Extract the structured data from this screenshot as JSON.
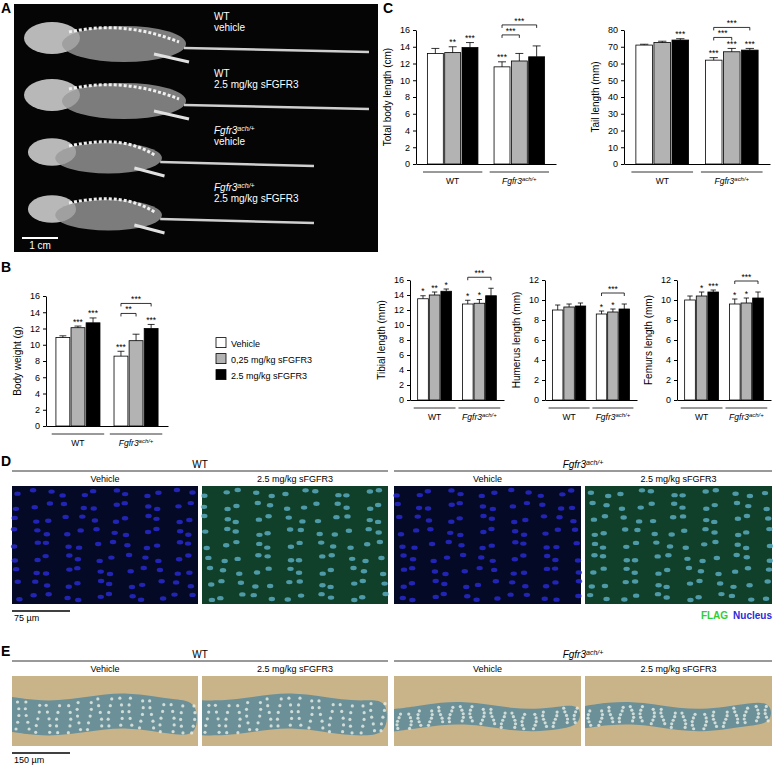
{
  "figure": {
    "panel_labels": [
      "A",
      "B",
      "C",
      "D",
      "E"
    ],
    "panel_a": {
      "specimens": [
        [
          "WT",
          "vehicle"
        ],
        [
          "WT",
          "2.5 mg/kg sFGFR3"
        ],
        [
          "Fgfr3ach/+",
          "vehicle"
        ],
        [
          "Fgfr3ach/+",
          "2.5 mg/kg sFGFR3"
        ]
      ],
      "scale_bar": "1 cm"
    },
    "panel_d": {
      "groups": [
        "WT",
        "Fgfr3ach/+"
      ],
      "conditions": [
        "Vehicle",
        "2.5 mg/kg sFGFR3"
      ],
      "scale_bar": "75 µm",
      "stains": [
        {
          "name": "FLAG",
          "color": "#33cc33"
        },
        {
          "name": "Nucleus",
          "color": "#2b2bd9"
        }
      ]
    },
    "panel_e": {
      "groups": [
        "WT",
        "Fgfr3ach/+"
      ],
      "conditions": [
        "Vehicle",
        "2.5 mg/kg sFGFR3"
      ],
      "scale_bar": "150 µm"
    }
  },
  "chart_data": [
    {
      "type": "bar",
      "y_label": "Body weight (g)",
      "categories": [
        "WT",
        "Fgfr3ach/+"
      ],
      "ylim": [
        0,
        16
      ],
      "yticks": [
        0,
        2,
        4,
        6,
        8,
        10,
        12,
        14,
        16
      ],
      "legend": "right",
      "series": [
        {
          "name": "Vehicle",
          "color": "#ffffff",
          "values": [
            10.9,
            8.6
          ],
          "errors": [
            0.2,
            0.6
          ],
          "significance": [
            null,
            "***"
          ]
        },
        {
          "name": "0,25 mg/kg sFGFR3",
          "color": "#b3b3b3",
          "values": [
            12.1,
            10.5
          ],
          "errors": [
            0.2,
            0.8
          ],
          "significance": [
            "***",
            null
          ]
        },
        {
          "name": "2.5 mg/kg sFGFR3",
          "color": "#000000",
          "values": [
            12.7,
            12.0
          ],
          "errors": [
            0.6,
            0.5
          ],
          "significance": [
            "***",
            "***"
          ]
        }
      ],
      "comparisons": [
        {
          "category": 1,
          "from": 0,
          "to": 1,
          "label": "**"
        },
        {
          "category": 1,
          "from": 0,
          "to": 2,
          "label": "***"
        }
      ]
    },
    {
      "type": "bar",
      "y_label": "Total body length (cm)",
      "categories": [
        "WT",
        "Fgfr3ach/+"
      ],
      "ylim": [
        0,
        16
      ],
      "yticks": [
        0,
        2,
        4,
        6,
        8,
        10,
        12,
        14,
        16
      ],
      "series": [
        {
          "color": "#ffffff",
          "values": [
            13.2,
            11.6
          ],
          "errors": [
            0.6,
            0.6
          ],
          "significance": [
            null,
            "***"
          ]
        },
        {
          "color": "#b3b3b3",
          "values": [
            13.3,
            12.3
          ],
          "errors": [
            0.7,
            0.9
          ],
          "significance": [
            "**",
            null
          ]
        },
        {
          "color": "#000000",
          "values": [
            13.9,
            12.8
          ],
          "errors": [
            0.6,
            1.3
          ],
          "significance": [
            "***",
            null
          ]
        }
      ],
      "comparisons": [
        {
          "category": 1,
          "from": 0,
          "to": 1,
          "label": "***"
        },
        {
          "category": 1,
          "from": 0,
          "to": 2,
          "label": "***"
        }
      ]
    },
    {
      "type": "bar",
      "y_label": "Tail length (mm)",
      "categories": [
        "WT",
        "Fgfr3ach/+"
      ],
      "ylim": [
        0,
        80
      ],
      "yticks": [
        0,
        10,
        20,
        30,
        40,
        50,
        60,
        70,
        80
      ],
      "series": [
        {
          "color": "#ffffff",
          "values": [
            71,
            62
          ],
          "errors": [
            0.5,
            1.5
          ],
          "significance": [
            null,
            "***"
          ]
        },
        {
          "color": "#b3b3b3",
          "values": [
            72.5,
            67
          ],
          "errors": [
            0.8,
            2
          ],
          "significance": [
            null,
            "***"
          ]
        },
        {
          "color": "#000000",
          "values": [
            74,
            68
          ],
          "errors": [
            0.8,
            1
          ],
          "significance": [
            "***",
            "***"
          ]
        }
      ],
      "comparisons": [
        {
          "category": 1,
          "from": 0,
          "to": 1,
          "label": "***"
        },
        {
          "category": 1,
          "from": 0,
          "to": 2,
          "label": "***"
        }
      ]
    },
    {
      "type": "bar",
      "y_label": "Tibial length (mm)",
      "categories": [
        "WT",
        "Fgfr3ach/+"
      ],
      "ylim": [
        0,
        16
      ],
      "yticks": [
        0,
        2,
        4,
        6,
        8,
        10,
        12,
        14,
        16
      ],
      "series": [
        {
          "color": "#ffffff",
          "values": [
            13.5,
            12.8
          ],
          "errors": [
            0.4,
            0.5
          ],
          "significance": [
            "*",
            "*"
          ]
        },
        {
          "color": "#b3b3b3",
          "values": [
            14.0,
            12.9
          ],
          "errors": [
            0.4,
            0.5
          ],
          "significance": [
            "**",
            "*"
          ]
        },
        {
          "color": "#000000",
          "values": [
            14.5,
            13.9
          ],
          "errors": [
            0.3,
            1.0
          ],
          "significance": [
            "*",
            null
          ]
        }
      ],
      "comparisons": [
        {
          "category": 1,
          "from": 0,
          "to": 2,
          "label": "***"
        }
      ]
    },
    {
      "type": "bar",
      "y_label": "Humerus length (mm)",
      "categories": [
        "WT",
        "Fgfr3ach/+"
      ],
      "ylim": [
        0,
        12
      ],
      "yticks": [
        0,
        2,
        4,
        6,
        8,
        10,
        12
      ],
      "series": [
        {
          "color": "#ffffff",
          "values": [
            9.0,
            8.6
          ],
          "errors": [
            0.5,
            0.3
          ],
          "significance": [
            null,
            "*"
          ]
        },
        {
          "color": "#b3b3b3",
          "values": [
            9.3,
            8.8
          ],
          "errors": [
            0.3,
            0.3
          ],
          "significance": [
            null,
            "*"
          ]
        },
        {
          "color": "#000000",
          "values": [
            9.4,
            9.1
          ],
          "errors": [
            0.3,
            0.5
          ],
          "significance": [
            null,
            null
          ]
        }
      ],
      "comparisons": [
        {
          "category": 1,
          "from": 0,
          "to": 2,
          "label": "***"
        }
      ]
    },
    {
      "type": "bar",
      "y_label": "Femurs length (mm)",
      "categories": [
        "WT",
        "Fgfr3ach/+"
      ],
      "ylim": [
        0,
        12
      ],
      "yticks": [
        0,
        2,
        4,
        6,
        8,
        10,
        12
      ],
      "series": [
        {
          "color": "#ffffff",
          "values": [
            10.0,
            9.6
          ],
          "errors": [
            0.4,
            0.5
          ],
          "significance": [
            null,
            "*"
          ]
        },
        {
          "color": "#b3b3b3",
          "values": [
            10.4,
            9.7
          ],
          "errors": [
            0.4,
            0.5
          ],
          "significance": [
            "*",
            "*"
          ]
        },
        {
          "color": "#000000",
          "values": [
            10.8,
            10.2
          ],
          "errors": [
            0.2,
            0.6
          ],
          "significance": [
            "***",
            null
          ]
        }
      ],
      "comparisons": [
        {
          "category": 1,
          "from": 0,
          "to": 2,
          "label": "***"
        }
      ]
    }
  ]
}
